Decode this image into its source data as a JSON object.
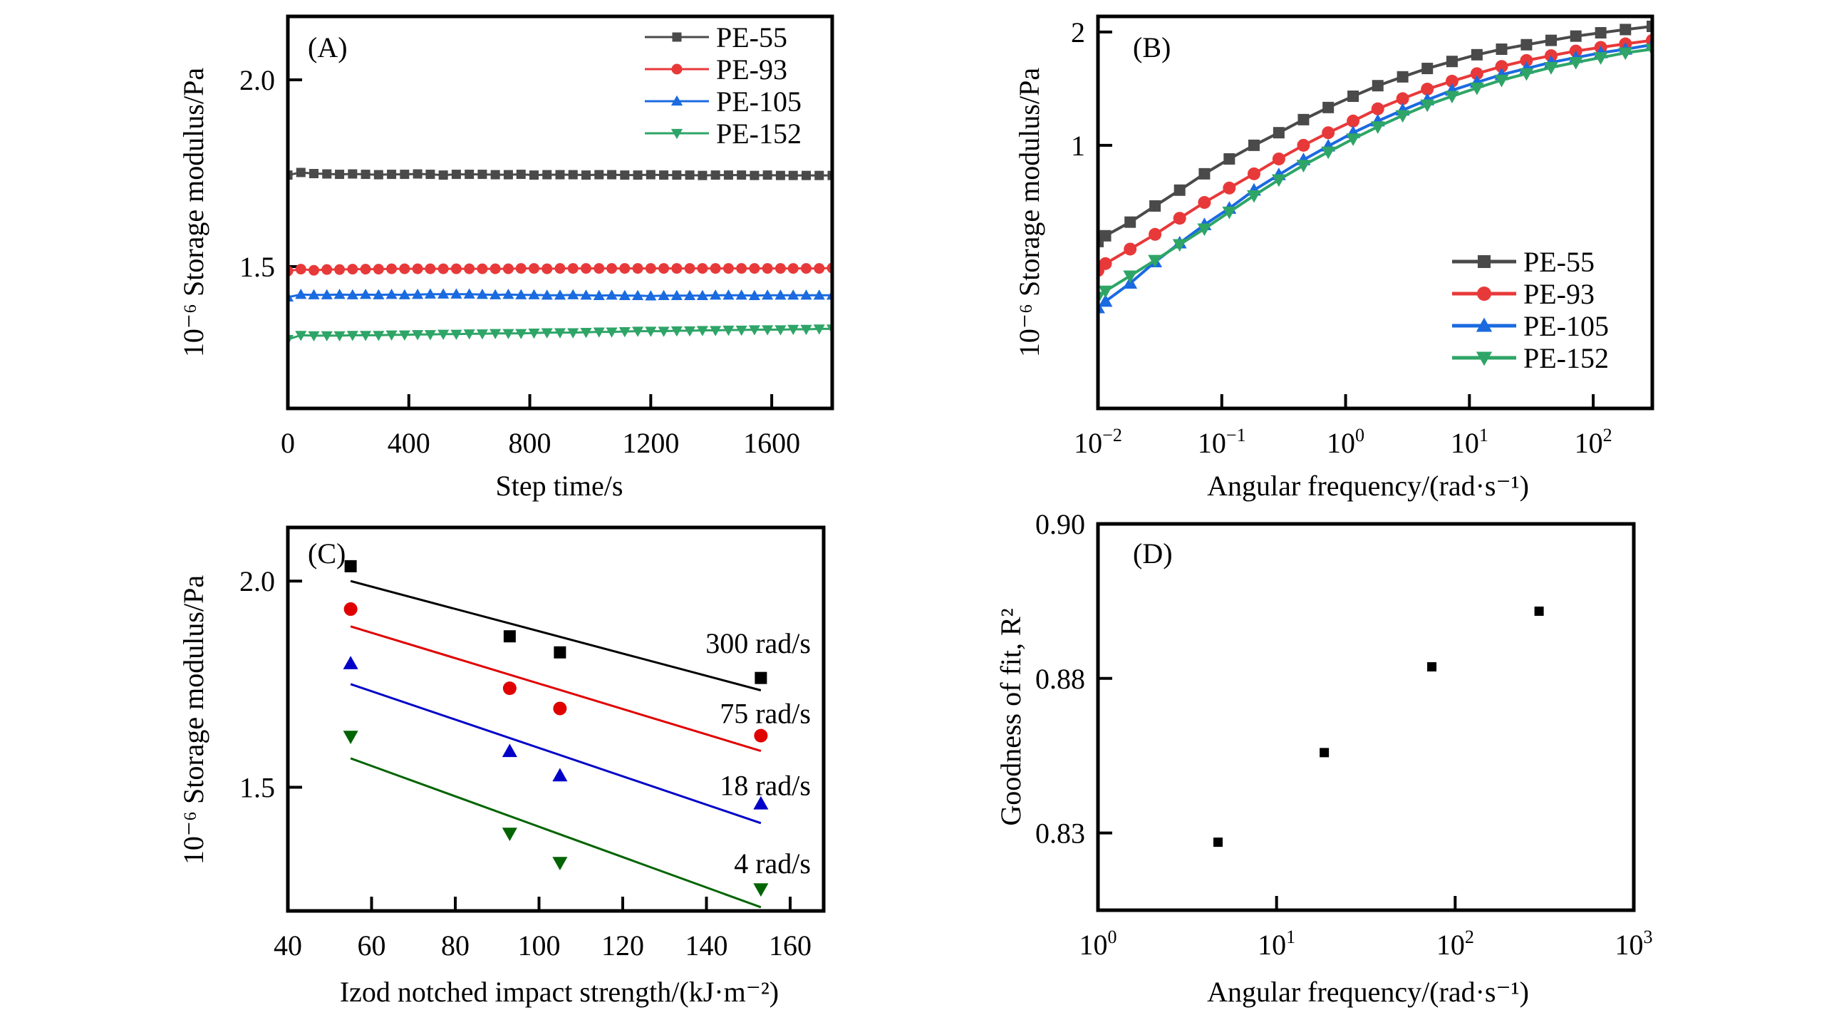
{
  "figure": {
    "panels": [
      "A",
      "B",
      "C",
      "D"
    ]
  },
  "chart_data": [
    {
      "id": "A",
      "type": "line",
      "panel_label": "(A)",
      "title": "",
      "xlabel": "Step time/s",
      "ylabel": "10⁻⁶ Storage modulus/Pa",
      "xlim": [
        0,
        1800
      ],
      "ylim": [
        1.12,
        2.17
      ],
      "xscale": "linear",
      "yscale": "linear",
      "xticks": [
        0,
        400,
        800,
        1200,
        1600
      ],
      "xtick_labels": [
        "0",
        "400",
        "800",
        "1200",
        "1600"
      ],
      "yticks": [
        1.5,
        2.0
      ],
      "ytick_labels": [
        "1.5",
        "2.0"
      ],
      "grid": false,
      "legend_position": "top-right",
      "x": [
        0,
        43,
        86,
        129,
        171,
        214,
        257,
        300,
        343,
        386,
        429,
        471,
        514,
        557,
        600,
        643,
        686,
        729,
        771,
        814,
        857,
        900,
        943,
        986,
        1029,
        1071,
        1114,
        1157,
        1200,
        1243,
        1286,
        1329,
        1371,
        1414,
        1457,
        1500,
        1543,
        1586,
        1629,
        1671,
        1714,
        1757,
        1800
      ],
      "series": [
        {
          "name": "PE-55",
          "color": "#4a4a4a",
          "marker": "square",
          "values": [
            1.745,
            1.752,
            1.749,
            1.748,
            1.747,
            1.748,
            1.747,
            1.746,
            1.747,
            1.747,
            1.748,
            1.747,
            1.745,
            1.747,
            1.747,
            1.747,
            1.746,
            1.746,
            1.747,
            1.745,
            1.746,
            1.746,
            1.746,
            1.745,
            1.746,
            1.746,
            1.745,
            1.745,
            1.746,
            1.745,
            1.745,
            1.745,
            1.744,
            1.745,
            1.745,
            1.745,
            1.744,
            1.745,
            1.744,
            1.744,
            1.744,
            1.744,
            1.744
          ]
        },
        {
          "name": "PE-93",
          "color": "#e8393a",
          "marker": "circle",
          "values": [
            1.488,
            1.493,
            1.49,
            1.492,
            1.492,
            1.493,
            1.493,
            1.493,
            1.494,
            1.494,
            1.494,
            1.494,
            1.494,
            1.494,
            1.494,
            1.494,
            1.494,
            1.494,
            1.495,
            1.495,
            1.494,
            1.495,
            1.495,
            1.495,
            1.495,
            1.495,
            1.495,
            1.495,
            1.495,
            1.495,
            1.495,
            1.495,
            1.495,
            1.495,
            1.495,
            1.495,
            1.495,
            1.495,
            1.495,
            1.495,
            1.495,
            1.495,
            1.496
          ]
        },
        {
          "name": "PE-105",
          "color": "#1a6ae0",
          "marker": "triangle-up",
          "values": [
            1.418,
            1.425,
            1.424,
            1.424,
            1.425,
            1.424,
            1.425,
            1.424,
            1.425,
            1.424,
            1.425,
            1.426,
            1.426,
            1.426,
            1.426,
            1.425,
            1.424,
            1.425,
            1.424,
            1.424,
            1.423,
            1.423,
            1.424,
            1.423,
            1.422,
            1.423,
            1.422,
            1.422,
            1.421,
            1.422,
            1.422,
            1.422,
            1.422,
            1.423,
            1.423,
            1.423,
            1.422,
            1.423,
            1.423,
            1.423,
            1.423,
            1.423,
            1.423
          ]
        },
        {
          "name": "PE-152",
          "color": "#2ea567",
          "marker": "triangle-down",
          "values": [
            1.305,
            1.316,
            1.315,
            1.315,
            1.315,
            1.316,
            1.316,
            1.316,
            1.317,
            1.317,
            1.318,
            1.318,
            1.319,
            1.319,
            1.32,
            1.32,
            1.321,
            1.321,
            1.321,
            1.322,
            1.323,
            1.323,
            1.323,
            1.324,
            1.325,
            1.325,
            1.326,
            1.327,
            1.327,
            1.327,
            1.328,
            1.328,
            1.329,
            1.329,
            1.33,
            1.33,
            1.331,
            1.331,
            1.331,
            1.332,
            1.332,
            1.333,
            1.333
          ]
        }
      ]
    },
    {
      "id": "B",
      "type": "line",
      "panel_label": "(B)",
      "title": "",
      "xlabel": "Angular frequency/(rad·s⁻¹)",
      "ylabel": "10⁻⁶ Storage modulus/Pa",
      "xlim": [
        0.01,
        300
      ],
      "ylim": [
        0.2,
        2.2
      ],
      "xscale": "log",
      "yscale": "log",
      "xticks": [
        0.01,
        0.1,
        1,
        10,
        100
      ],
      "xtick_labels": [
        [
          "10",
          "−2"
        ],
        [
          "10",
          "−1"
        ],
        [
          "10",
          "0"
        ],
        [
          "10",
          "1"
        ],
        [
          "10",
          "2"
        ]
      ],
      "yticks": [
        1,
        2
      ],
      "ytick_labels": [
        "1",
        "2"
      ],
      "grid": false,
      "legend_position": "bottom-right",
      "x": [
        0.01,
        0.0115,
        0.0182,
        0.0289,
        0.0457,
        0.0724,
        0.115,
        0.182,
        0.289,
        0.457,
        0.724,
        1.15,
        1.82,
        2.89,
        4.57,
        7.24,
        11.5,
        18.2,
        28.9,
        45.7,
        72.4,
        115,
        182,
        300
      ],
      "series": [
        {
          "name": "PE-55",
          "color": "#4a4a4a",
          "marker": "square",
          "values": [
            0.555,
            0.575,
            0.625,
            0.69,
            0.76,
            0.84,
            0.92,
            1.0,
            1.08,
            1.17,
            1.26,
            1.35,
            1.44,
            1.52,
            1.6,
            1.67,
            1.74,
            1.8,
            1.85,
            1.9,
            1.95,
            1.99,
            2.03,
            2.07
          ]
        },
        {
          "name": "PE-93",
          "color": "#e8393a",
          "marker": "circle",
          "values": [
            0.465,
            0.485,
            0.53,
            0.58,
            0.64,
            0.705,
            0.77,
            0.84,
            0.92,
            1.0,
            1.08,
            1.16,
            1.25,
            1.33,
            1.41,
            1.48,
            1.55,
            1.62,
            1.68,
            1.73,
            1.78,
            1.82,
            1.86,
            1.9
          ]
        },
        {
          "name": "PE-105",
          "color": "#1a6ae0",
          "marker": "triangle-up",
          "values": [
            0.37,
            0.385,
            0.43,
            0.49,
            0.55,
            0.615,
            0.68,
            0.76,
            0.835,
            0.915,
            0.995,
            1.08,
            1.16,
            1.24,
            1.32,
            1.4,
            1.47,
            1.54,
            1.6,
            1.66,
            1.71,
            1.76,
            1.8,
            1.85
          ]
        },
        {
          "name": "PE-152",
          "color": "#2ea567",
          "marker": "triangle-down",
          "values": [
            0.395,
            0.41,
            0.45,
            0.495,
            0.545,
            0.6,
            0.665,
            0.735,
            0.81,
            0.885,
            0.96,
            1.04,
            1.12,
            1.2,
            1.28,
            1.35,
            1.42,
            1.49,
            1.55,
            1.61,
            1.66,
            1.71,
            1.76,
            1.8
          ]
        }
      ]
    },
    {
      "id": "C",
      "type": "scatter",
      "panel_label": "(C)",
      "title": "",
      "xlabel": "Izod notched impact strength/(kJ·m⁻²)",
      "ylabel": "10⁻⁶ Storage modulus/Pa",
      "xlim": [
        40,
        168
      ],
      "ylim": [
        1.2,
        2.13
      ],
      "xscale": "linear",
      "yscale": "linear",
      "xticks": [
        40,
        60,
        80,
        100,
        120,
        140,
        160
      ],
      "xtick_labels": [
        "40",
        "60",
        "80",
        "100",
        "120",
        "140",
        "160"
      ],
      "yticks": [
        1.5,
        2.0
      ],
      "ytick_labels": [
        "1.5",
        "2.0"
      ],
      "grid": false,
      "x": [
        55,
        93,
        105,
        153
      ],
      "series": [
        {
          "name": "300 rad/s",
          "color": "#000000",
          "marker": "square",
          "values": [
            2.036,
            1.866,
            1.827,
            1.765
          ],
          "fit": {
            "x": [
              55,
              153
            ],
            "y": [
              2.0,
              1.735
            ]
          },
          "label_y": 1.85
        },
        {
          "name": "75 rad/s",
          "color": "#e00000",
          "marker": "circle",
          "values": [
            1.932,
            1.74,
            1.691,
            1.625
          ],
          "fit": {
            "x": [
              55,
              153
            ],
            "y": [
              1.89,
              1.588
            ]
          },
          "label_y": 1.68
        },
        {
          "name": "18 rad/s",
          "color": "#0000c8",
          "marker": "triangle-up",
          "values": [
            1.8,
            1.587,
            1.528,
            1.46
          ],
          "fit": {
            "x": [
              55,
              153
            ],
            "y": [
              1.75,
              1.413
            ]
          },
          "label_y": 1.505
        },
        {
          "name": "4 rad/s",
          "color": "#006400",
          "marker": "triangle-down",
          "values": [
            1.623,
            1.388,
            1.317,
            1.253
          ],
          "fit": {
            "x": [
              55,
              153
            ],
            "y": [
              1.57,
              1.209
            ]
          },
          "label_y": 1.316
        }
      ]
    },
    {
      "id": "D",
      "type": "scatter",
      "panel_label": "(D)",
      "title": "",
      "xlabel": "Angular frequency/(rad·s⁻¹)",
      "ylabel": "Goodness of fit, R²",
      "xlim": [
        1,
        1000
      ],
      "xscale": "log",
      "yscale": "piecewise",
      "xticks": [
        1,
        10,
        100,
        1000
      ],
      "xtick_labels": [
        [
          "10",
          "0"
        ],
        [
          "10",
          "1"
        ],
        [
          "10",
          "2"
        ],
        [
          "10",
          "3"
        ]
      ],
      "yticks": [
        0.9,
        0.88,
        0.83
      ],
      "ytick_labels": [
        "0.90",
        "0.88",
        "0.83"
      ],
      "ylim": [
        0.805,
        0.9
      ],
      "grid": false,
      "series": [
        {
          "name": "R²",
          "color": "#000000",
          "marker": "square",
          "x": [
            4.7,
            18.5,
            74,
            295
          ],
          "values": [
            0.827,
            0.856,
            0.8815,
            0.8887
          ]
        }
      ]
    }
  ]
}
